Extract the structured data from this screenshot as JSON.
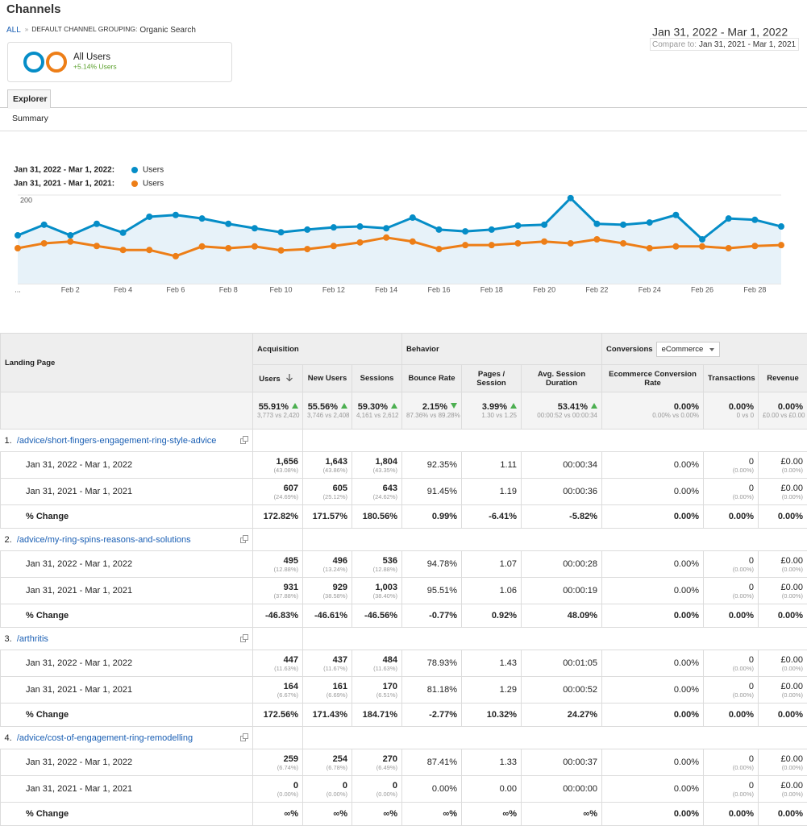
{
  "header": {
    "title": "Channels",
    "breadcrumb": [
      "ALL",
      "»",
      "DEFAULT CHANNEL GROUPING:",
      "Organic Search"
    ],
    "segment": {
      "name": "All Users",
      "change": "+5.14% Users"
    },
    "date_range": "Jan 31, 2022 - Mar 1, 2022",
    "compare_label": "Compare to:",
    "compare_range": "Jan 31, 2021 - Mar 1, 2021"
  },
  "tabs": [
    "Explorer"
  ],
  "subtab": "Summary",
  "chart_data": {
    "type": "line",
    "categories": [
      "...",
      null,
      "Feb 2",
      null,
      "Feb 4",
      null,
      "Feb 6",
      null,
      "Feb 8",
      null,
      "Feb 10",
      null,
      "Feb 12",
      null,
      "Feb 14",
      null,
      "Feb 16",
      null,
      "Feb 18",
      null,
      "Feb 20",
      null,
      "Feb 22",
      null,
      "Feb 24",
      null,
      "Feb 26",
      null,
      "Feb 28",
      null
    ],
    "series": [
      {
        "period": "Jan 31, 2022 - Mar 1, 2022:",
        "name": "Users",
        "color": "#058dc7",
        "area": true,
        "values": [
          109,
          133,
          109,
          135,
          115,
          151,
          155,
          147,
          135,
          125,
          116,
          122,
          127,
          129,
          125,
          149,
          122,
          118,
          122,
          131,
          133,
          193,
          135,
          133,
          138,
          155,
          100,
          147,
          144,
          129
        ]
      },
      {
        "period": "Jan 31, 2021 - Mar 1, 2021:",
        "name": "Users",
        "color": "#ed7e17",
        "area": false,
        "values": [
          80,
          91,
          95,
          85,
          76,
          76,
          62,
          84,
          80,
          84,
          75,
          78,
          85,
          93,
          104,
          95,
          78,
          87,
          87,
          91,
          95,
          91,
          100,
          91,
          80,
          84,
          84,
          80,
          85,
          87
        ]
      }
    ],
    "ylim": [
      0,
      200
    ],
    "yticks": [
      100,
      200
    ],
    "grid": true
  },
  "table": {
    "first_header": "Landing Page",
    "sections": [
      "Acquisition",
      "Behavior",
      "Conversions"
    ],
    "conversions_select": "eCommerce",
    "columns": [
      "Users",
      "New Users",
      "Sessions",
      "Bounce Rate",
      "Pages / Session",
      "Avg. Session Duration",
      "Ecommerce Conversion Rate",
      "Transactions",
      "Revenue"
    ],
    "totals": [
      {
        "main": "55.91%",
        "sub": "3,773 vs 2,420",
        "trend": "up"
      },
      {
        "main": "55.56%",
        "sub": "3,746 vs 2,408",
        "trend": "up"
      },
      {
        "main": "59.30%",
        "sub": "4,161 vs 2,612",
        "trend": "up"
      },
      {
        "main": "2.15%",
        "sub": "87.36% vs 89.28%",
        "trend": "down"
      },
      {
        "main": "3.99%",
        "sub": "1.30 vs 1.25",
        "trend": "up"
      },
      {
        "main": "53.41%",
        "sub": "00:00:52 vs 00:00:34",
        "trend": "up"
      },
      {
        "main": "0.00%",
        "sub": "0.00% vs 0.00%"
      },
      {
        "main": "0.00%",
        "sub": "0 vs 0"
      },
      {
        "main": "0.00%",
        "sub": "£0.00 vs £0.00"
      }
    ],
    "rows": [
      {
        "index": "1.",
        "page": "/advice/short-fingers-engagement-ring-style-advice",
        "periods": [
          {
            "label": "Jan 31, 2022 - Mar 1, 2022",
            "cells": [
              {
                "main": "1,656",
                "sub": "(43.08%)"
              },
              {
                "main": "1,643",
                "sub": "(43.86%)"
              },
              {
                "main": "1,804",
                "sub": "(43.35%)"
              },
              "92.35%",
              "1.11",
              "00:00:34",
              "0.00%",
              {
                "main": "0",
                "sub": "(0.00%)"
              },
              {
                "main": "£0.00",
                "sub": "(0.00%)"
              }
            ]
          },
          {
            "label": "Jan 31, 2021 - Mar 1, 2021",
            "cells": [
              {
                "main": "607",
                "sub": "(24.69%)"
              },
              {
                "main": "605",
                "sub": "(25.12%)"
              },
              {
                "main": "643",
                "sub": "(24.62%)"
              },
              "91.45%",
              "1.19",
              "00:00:36",
              "0.00%",
              {
                "main": "0",
                "sub": "(0.00%)"
              },
              {
                "main": "£0.00",
                "sub": "(0.00%)"
              }
            ]
          },
          {
            "label": "% Change",
            "cells": [
              "172.82%",
              "171.57%",
              "180.56%",
              "0.99%",
              "-6.41%",
              "-5.82%",
              "0.00%",
              "0.00%",
              "0.00%"
            ]
          }
        ]
      },
      {
        "index": "2.",
        "page": "/advice/my-ring-spins-reasons-and-solutions",
        "periods": [
          {
            "label": "Jan 31, 2022 - Mar 1, 2022",
            "cells": [
              {
                "main": "495",
                "sub": "(12.88%)"
              },
              {
                "main": "496",
                "sub": "(13.24%)"
              },
              {
                "main": "536",
                "sub": "(12.88%)"
              },
              "94.78%",
              "1.07",
              "00:00:28",
              "0.00%",
              {
                "main": "0",
                "sub": "(0.00%)"
              },
              {
                "main": "£0.00",
                "sub": "(0.00%)"
              }
            ]
          },
          {
            "label": "Jan 31, 2021 - Mar 1, 2021",
            "cells": [
              {
                "main": "931",
                "sub": "(37.88%)"
              },
              {
                "main": "929",
                "sub": "(38.58%)"
              },
              {
                "main": "1,003",
                "sub": "(38.40%)"
              },
              "95.51%",
              "1.06",
              "00:00:19",
              "0.00%",
              {
                "main": "0",
                "sub": "(0.00%)"
              },
              {
                "main": "£0.00",
                "sub": "(0.00%)"
              }
            ]
          },
          {
            "label": "% Change",
            "cells": [
              "-46.83%",
              "-46.61%",
              "-46.56%",
              "-0.77%",
              "0.92%",
              "48.09%",
              "0.00%",
              "0.00%",
              "0.00%"
            ]
          }
        ]
      },
      {
        "index": "3.",
        "page": "/arthritis",
        "periods": [
          {
            "label": "Jan 31, 2022 - Mar 1, 2022",
            "cells": [
              {
                "main": "447",
                "sub": "(11.63%)"
              },
              {
                "main": "437",
                "sub": "(11.67%)"
              },
              {
                "main": "484",
                "sub": "(11.63%)"
              },
              "78.93%",
              "1.43",
              "00:01:05",
              "0.00%",
              {
                "main": "0",
                "sub": "(0.00%)"
              },
              {
                "main": "£0.00",
                "sub": "(0.00%)"
              }
            ]
          },
          {
            "label": "Jan 31, 2021 - Mar 1, 2021",
            "cells": [
              {
                "main": "164",
                "sub": "(6.67%)"
              },
              {
                "main": "161",
                "sub": "(6.69%)"
              },
              {
                "main": "170",
                "sub": "(6.51%)"
              },
              "81.18%",
              "1.29",
              "00:00:52",
              "0.00%",
              {
                "main": "0",
                "sub": "(0.00%)"
              },
              {
                "main": "£0.00",
                "sub": "(0.00%)"
              }
            ]
          },
          {
            "label": "% Change",
            "cells": [
              "172.56%",
              "171.43%",
              "184.71%",
              "-2.77%",
              "10.32%",
              "24.27%",
              "0.00%",
              "0.00%",
              "0.00%"
            ]
          }
        ]
      },
      {
        "index": "4.",
        "page": "/advice/cost-of-engagement-ring-remodelling",
        "periods": [
          {
            "label": "Jan 31, 2022 - Mar 1, 2022",
            "cells": [
              {
                "main": "259",
                "sub": "(6.74%)"
              },
              {
                "main": "254",
                "sub": "(6.78%)"
              },
              {
                "main": "270",
                "sub": "(6.49%)"
              },
              "87.41%",
              "1.33",
              "00:00:37",
              "0.00%",
              {
                "main": "0",
                "sub": "(0.00%)"
              },
              {
                "main": "£0.00",
                "sub": "(0.00%)"
              }
            ]
          },
          {
            "label": "Jan 31, 2021 - Mar 1, 2021",
            "cells": [
              {
                "main": "0",
                "sub": "(0.00%)"
              },
              {
                "main": "0",
                "sub": "(0.00%)"
              },
              {
                "main": "0",
                "sub": "(0.00%)"
              },
              "0.00%",
              "0.00",
              "00:00:00",
              "0.00%",
              {
                "main": "0",
                "sub": "(0.00%)"
              },
              {
                "main": "£0.00",
                "sub": "(0.00%)"
              }
            ]
          },
          {
            "label": "% Change",
            "cells": [
              "∞%",
              "∞%",
              "∞%",
              "∞%",
              "∞%",
              "∞%",
              "0.00%",
              "0.00%",
              "0.00%"
            ]
          }
        ]
      }
    ]
  }
}
